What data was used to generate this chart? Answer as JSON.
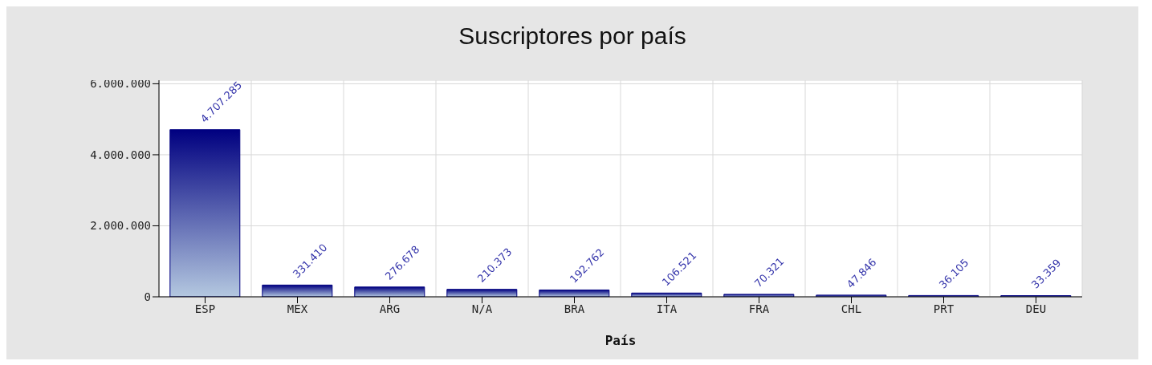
{
  "chart_data": {
    "type": "bar",
    "title": "Suscriptores por país",
    "xlabel": "País",
    "categories": [
      "ESP",
      "MEX",
      "ARG",
      "N/A",
      "BRA",
      "ITA",
      "FRA",
      "CHL",
      "PRT",
      "DEU"
    ],
    "values": [
      4707285,
      331410,
      276678,
      210373,
      192762,
      106521,
      70321,
      47846,
      36105,
      33359
    ],
    "value_labels": [
      "4.707.285",
      "331.410",
      "276.678",
      "210.373",
      "192.762",
      "106.521",
      "70.321",
      "47.846",
      "36.105",
      "33.359"
    ],
    "color": "#000080",
    "ylim": [
      0,
      6100000
    ],
    "yticks": [
      {
        "value": 0,
        "label": "0"
      },
      {
        "value": 2000000,
        "label": "2.000.000"
      },
      {
        "value": 4000000,
        "label": "4.000.000"
      },
      {
        "value": 6000000,
        "label": "6.000.000"
      }
    ],
    "grid": true
  }
}
